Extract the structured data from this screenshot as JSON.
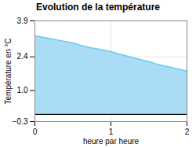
{
  "chart_data": {
    "type": "area",
    "title": "Evolution de la température",
    "xlabel": "heure par heure",
    "ylabel": "Température en °C",
    "x": [
      0.0,
      0.1,
      0.2,
      0.3,
      0.4,
      0.5,
      0.6,
      0.7,
      0.8,
      0.9,
      1.0,
      1.1,
      1.2,
      1.3,
      1.4,
      1.5,
      1.6,
      1.7,
      1.8,
      1.9,
      2.0
    ],
    "values": [
      3.28,
      3.22,
      3.16,
      3.1,
      3.04,
      2.98,
      2.88,
      2.8,
      2.74,
      2.68,
      2.62,
      2.52,
      2.44,
      2.36,
      2.28,
      2.2,
      2.1,
      2.02,
      1.96,
      1.88,
      1.8
    ],
    "baseline": 0,
    "colors": [
      "#aaddf5",
      "#66ccee"
    ],
    "xlim": [
      0,
      2
    ],
    "xticks": [
      0,
      1,
      2
    ],
    "ylim": [
      -0.3,
      3.9
    ],
    "yticks": [
      -0.3,
      {
        "value": 1,
        "label": "1.0"
      },
      2.4,
      3.9
    ],
    "grid": true
  }
}
